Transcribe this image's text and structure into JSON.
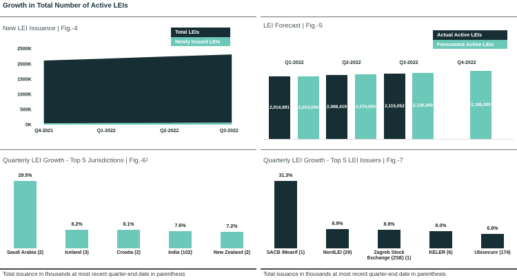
{
  "page": {
    "title": "Growth in Total Number of Active LEIs"
  },
  "colors": {
    "dark": "#172F34",
    "teal": "#6CC8B8",
    "rule": "#6F6F6F",
    "footnote_rule": "#4A4A4A",
    "bar_value_text": "#FFFFFF"
  },
  "chart_data": [
    {
      "id": "fig4",
      "type": "area",
      "stacked": true,
      "title": "New LEI Issuance | Fig.-4",
      "legend": [
        {
          "label": "Total LEIs",
          "color": "dark"
        },
        {
          "label": "Newly Issued LEIs",
          "color": "teal"
        }
      ],
      "legend_position": "top-right",
      "grid": false,
      "x": [
        "Q4-2021",
        "Q1-2022",
        "Q2-2022",
        "Q3-2022"
      ],
      "series": [
        {
          "name": "Newly Issued LEIs",
          "color": "teal",
          "values": [
            50000,
            55000,
            62000,
            68000
          ]
        },
        {
          "name": "Total LEIs",
          "color": "dark",
          "values": [
            2110000,
            2175000,
            2245000,
            2310000
          ]
        }
      ],
      "ylim": [
        0,
        2500000
      ],
      "yticks": [
        {
          "label": "2500K",
          "value": 2500000
        },
        {
          "label": "2000K",
          "value": 2000000
        },
        {
          "label": "1500K",
          "value": 1500000
        },
        {
          "label": "1000K",
          "value": 1000000
        },
        {
          "label": "500K",
          "value": 500000
        },
        {
          "label": "0K",
          "value": 0
        }
      ]
    },
    {
      "id": "fig5",
      "type": "bar",
      "title": "LEI Forecast | Fig.-5",
      "legend": [
        {
          "label": "Actual Active LEIs",
          "color": "dark"
        },
        {
          "label": "Forecasted Active LEIs",
          "color": "teal"
        }
      ],
      "legend_position": "top-right",
      "bar_labels": true,
      "categories": [
        "Q1-2022",
        "Q2-2022",
        "Q3-2022",
        "Q4-2022"
      ],
      "series": [
        {
          "name": "Actual Active LEIs",
          "color": "dark",
          "values": [
            2014991,
            2068419,
            2115052,
            null
          ]
        },
        {
          "name": "Forecasted Active LEIs",
          "color": "teal",
          "values": [
            2014000,
            2074000,
            2130000,
            2195000
          ]
        }
      ]
    },
    {
      "id": "fig6",
      "type": "bar",
      "title": "Quarterly LEI Growth - Top 5 Jurisdictions | Fig.-6¹",
      "color": "teal",
      "unit": "%",
      "categories": [
        "Saudi Arabia (2)",
        "Iceland (3)",
        "Croatia (2)",
        "India (102)",
        "New Zealand (2)"
      ],
      "values": [
        29.5,
        8.2,
        8.1,
        7.6,
        7.2
      ],
      "footnote": "Total issuance in thousands at most recent quarter-end date in parenthesis"
    },
    {
      "id": "fig7",
      "type": "bar",
      "title": "Quarterly LEI Growth - Top 5 LEI Issuers | Fig.-7",
      "color": "dark",
      "unit": "%",
      "categories": [
        "SACB /Moarif (1)",
        "NordLEI (29)",
        "Zagreb Stock Exchange (ZSE) (1)",
        "KELER (6)",
        "Ubisecure (174)"
      ],
      "values": [
        31.3,
        8.9,
        8.8,
        8.0,
        6.8
      ],
      "footnote": "Total issuance in thousands at most recent quarter-end date in parenthesis"
    }
  ]
}
